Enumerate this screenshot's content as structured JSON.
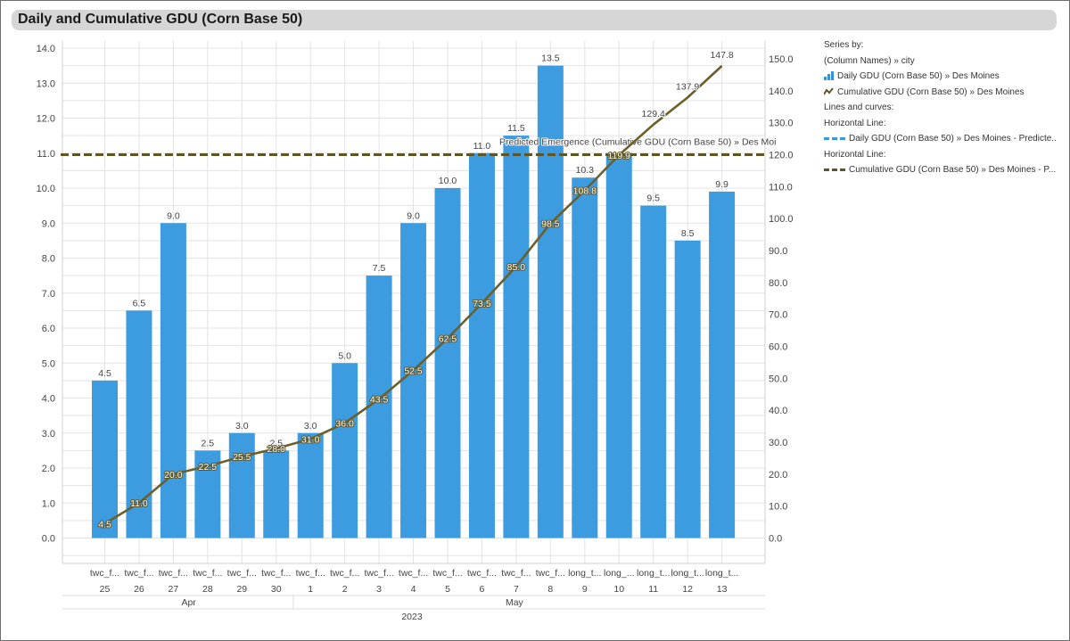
{
  "title": "Daily and Cumulative GDU (Corn Base 50)",
  "colors": {
    "bar": "#3d9be0",
    "line": "#6b5f2a",
    "dash_line": "#5e5527",
    "legend_dash_blue": "#3a9ad9",
    "grid": "#e3e3e3",
    "title_bg": "#d6d6d6"
  },
  "chart_data": {
    "type": "bar",
    "categories_line1": [
      "twc_f...",
      "twc_f...",
      "twc_f...",
      "twc_f...",
      "twc_f...",
      "twc_f...",
      "twc_f...",
      "twc_f...",
      "twc_f...",
      "twc_f...",
      "twc_f...",
      "twc_f...",
      "twc_f...",
      "twc_f...",
      "long_t...",
      "long_...",
      "long_t...",
      "long_t...",
      "long_t..."
    ],
    "categories_line2": [
      "25",
      "26",
      "27",
      "28",
      "29",
      "30",
      "1",
      "2",
      "3",
      "4",
      "5",
      "6",
      "7",
      "8",
      "9",
      "10",
      "11",
      "12",
      "13"
    ],
    "month_labels": [
      {
        "label": "Apr",
        "center_index": 2.5
      },
      {
        "label": "May",
        "center_index": 12
      }
    ],
    "year_label": "2023",
    "series": [
      {
        "name": "Daily GDU (Corn Base 50) » Des Moines",
        "type": "bar",
        "axis": "left",
        "values": [
          4.5,
          6.5,
          9.0,
          2.5,
          3.0,
          2.5,
          3.0,
          5.0,
          7.5,
          9.0,
          10.0,
          11.0,
          11.5,
          13.5,
          10.3,
          11.0,
          9.5,
          8.5,
          9.9
        ],
        "labels": [
          "4.5",
          "6.5",
          "9.0",
          "2.5",
          "3.0",
          "2.5",
          "3.0",
          "5.0",
          "7.5",
          "9.0",
          "10.0",
          "11.0",
          "11.5",
          "13.5",
          "10.3",
          "",
          "9.5",
          "8.5",
          "9.9"
        ]
      },
      {
        "name": "Cumulative GDU (Corn Base 50) » Des Moines",
        "type": "line",
        "axis": "right",
        "values": [
          4.5,
          11.0,
          20.0,
          22.5,
          25.5,
          28.0,
          31.0,
          36.0,
          43.5,
          52.5,
          62.5,
          73.5,
          85.0,
          98.5,
          108.8,
          119.9,
          129.4,
          137.9,
          147.8
        ],
        "labels": [
          "4.5",
          "11.0",
          "20.0",
          "22.5",
          "25.5",
          "28.0",
          "31.0",
          "36.0",
          "43.5",
          "52.5",
          "62.5",
          "73.5",
          "85.0",
          "98.5",
          "108.8",
          "119.9",
          "129.4",
          "137.9",
          "147.8"
        ]
      }
    ],
    "horizontal_line": {
      "axis": "right",
      "value": 120,
      "label": "Predicted Emergence (Cumulative GDU (Corn Base 50) » Des Moi"
    },
    "left_axis": {
      "min": 0,
      "max": 14,
      "ticks": [
        "0.0",
        "1.0",
        "2.0",
        "3.0",
        "4.0",
        "5.0",
        "6.0",
        "7.0",
        "8.0",
        "9.0",
        "10.0",
        "11.0",
        "12.0",
        "13.0",
        "14.0"
      ]
    },
    "right_axis": {
      "min": 0,
      "max": 150,
      "ticks": [
        "0.0",
        "10.0",
        "20.0",
        "30.0",
        "40.0",
        "50.0",
        "60.0",
        "70.0",
        "80.0",
        "90.0",
        "100.0",
        "110.0",
        "120.0",
        "130.0",
        "140.0",
        "150.0"
      ]
    }
  },
  "legend": {
    "series_by": "Series by:",
    "column_names": "(Column Names)  »  city",
    "item_bar": "Daily GDU (Corn Base 50) » Des Moines",
    "item_line": "Cumulative GDU (Corn Base 50) » Des Moines",
    "lines_and_curves": "Lines and curves:",
    "horizontal_line_1": "Horizontal Line:",
    "hl_item_1": "Daily GDU (Corn Base 50) » Des Moines - Predicte...",
    "horizontal_line_2": "Horizontal Line:",
    "hl_item_2": "Cumulative GDU (Corn Base 50) » Des Moines - P..."
  }
}
